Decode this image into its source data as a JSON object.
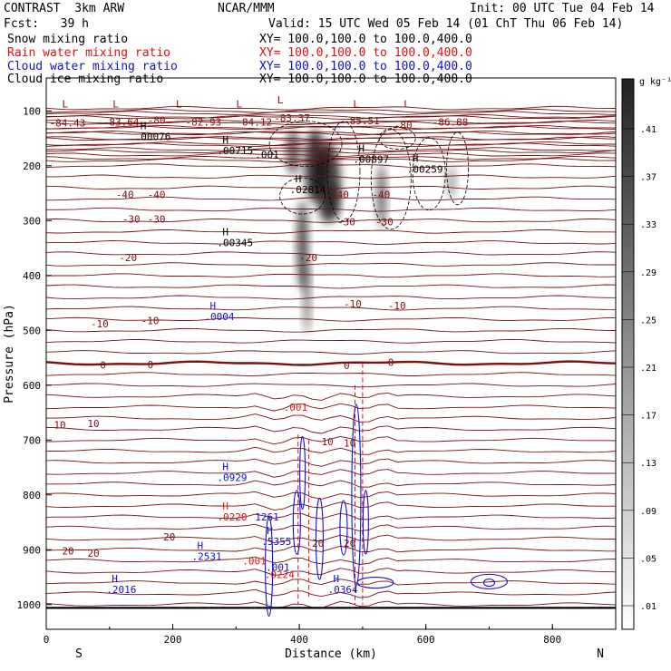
{
  "header": {
    "model": "CONTRAST  3km ARW",
    "org": "NCAR/MMM",
    "init": "Init: 00 UTC Tue 04 Feb 14",
    "fcst": "Fcst:   39 h",
    "valid": "Valid: 15 UTC Wed 05 Feb 14 (01 ChT Thu 06 Feb 14)",
    "xy": "XY= 100.0,100.0 to 100.0,400.0",
    "fields": [
      {
        "label": "Snow mixing ratio",
        "color": "#000000"
      },
      {
        "label": "Rain water mixing ratio",
        "color": "#e01010"
      },
      {
        "label": "Cloud water mixing ratio",
        "color": "#1010d0"
      },
      {
        "label": "Cloud ice mixing ratio",
        "color": "#000000"
      }
    ]
  },
  "colors": {
    "temp": "#7a1010",
    "rain": "#e01010",
    "cloud_water": "#1010d0",
    "snow": "#000000"
  },
  "chart_data": {
    "type": "contour",
    "xlabel": "Distance (km)",
    "ylabel": "Pressure (hPa)",
    "xlim": [
      0,
      900
    ],
    "ylim": [
      1045,
      40
    ],
    "x_ticks": [
      0,
      200,
      400,
      600,
      800
    ],
    "y_ticks": [
      100,
      200,
      300,
      400,
      500,
      600,
      700,
      800,
      900,
      1000
    ],
    "x_end_labels": {
      "left": "S",
      "right": "N"
    },
    "colorbar": {
      "unit": "g kg⁻¹",
      "ticks": [
        ".41",
        ".37",
        ".33",
        ".29",
        ".25",
        ".21",
        ".17",
        ".13",
        ".09",
        ".05",
        ".01"
      ]
    },
    "temperature_labels": [
      {
        "x": 5,
        "p": 122,
        "text": "-84.43"
      },
      {
        "x": 90,
        "p": 120,
        "text": "-83.64"
      },
      {
        "x": 160,
        "p": 117,
        "text": "-80"
      },
      {
        "x": 220,
        "p": 120,
        "text": "-82.93"
      },
      {
        "x": 300,
        "p": 120,
        "text": "-84.12"
      },
      {
        "x": 360,
        "p": 113,
        "text": "-83.37"
      },
      {
        "x": 470,
        "p": 118,
        "text": "-85.51"
      },
      {
        "x": 550,
        "p": 126,
        "text": "-80"
      },
      {
        "x": 610,
        "p": 120,
        "text": "-86.88"
      },
      {
        "x": 110,
        "p": 252,
        "text": "-40"
      },
      {
        "x": 160,
        "p": 252,
        "text": "-40"
      },
      {
        "x": 450,
        "p": 252,
        "text": "-40"
      },
      {
        "x": 515,
        "p": 252,
        "text": "-40"
      },
      {
        "x": 120,
        "p": 297,
        "text": "-30"
      },
      {
        "x": 160,
        "p": 297,
        "text": "-30"
      },
      {
        "x": 460,
        "p": 302,
        "text": "-30"
      },
      {
        "x": 520,
        "p": 302,
        "text": "-30"
      },
      {
        "x": 115,
        "p": 367,
        "text": "-20"
      },
      {
        "x": 400,
        "p": 367,
        "text": "-20"
      },
      {
        "x": 70,
        "p": 488,
        "text": "-10"
      },
      {
        "x": 150,
        "p": 482,
        "text": "-10"
      },
      {
        "x": 470,
        "p": 452,
        "text": "-10"
      },
      {
        "x": 540,
        "p": 455,
        "text": "-10"
      },
      {
        "x": 85,
        "p": 563,
        "text": "0"
      },
      {
        "x": 160,
        "p": 562,
        "text": "0"
      },
      {
        "x": 470,
        "p": 564,
        "text": "0"
      },
      {
        "x": 540,
        "p": 558,
        "text": "0"
      },
      {
        "x": 12,
        "p": 672,
        "text": "10"
      },
      {
        "x": 65,
        "p": 670,
        "text": "10"
      },
      {
        "x": 435,
        "p": 703,
        "text": "10"
      },
      {
        "x": 470,
        "p": 705,
        "text": "10"
      },
      {
        "x": 25,
        "p": 902,
        "text": "20"
      },
      {
        "x": 65,
        "p": 906,
        "text": "20"
      },
      {
        "x": 185,
        "p": 876,
        "text": "20"
      },
      {
        "x": 420,
        "p": 888,
        "text": "20"
      },
      {
        "x": 470,
        "p": 888,
        "text": "20"
      }
    ],
    "extrema": [
      {
        "x": 140,
        "p": 147,
        "mark": "H",
        "value": ".00076",
        "color": "#000000"
      },
      {
        "x": 270,
        "p": 172,
        "mark": "H",
        "value": ".00715",
        "color": "#000000"
      },
      {
        "x": 330,
        "p": 180,
        "mark": "",
        "value": ".001",
        "color": "#000000"
      },
      {
        "x": 385,
        "p": 243,
        "mark": "H",
        "value": ".02814",
        "color": "#000000"
      },
      {
        "x": 485,
        "p": 188,
        "mark": "H",
        "value": ".00897",
        "color": "#000000"
      },
      {
        "x": 570,
        "p": 206,
        "mark": "H",
        "value": ".00259",
        "color": "#000000"
      },
      {
        "x": 270,
        "p": 340,
        "mark": "H",
        "value": ".00345",
        "color": "#000000"
      },
      {
        "x": 250,
        "p": 475,
        "mark": "H",
        "value": ".0004",
        "color": "#1010d0"
      },
      {
        "x": 375,
        "p": 640,
        "mark": "",
        "value": ".001",
        "color": "#e01010"
      },
      {
        "x": 270,
        "p": 768,
        "mark": "H",
        "value": ".0929",
        "color": "#1010d0"
      },
      {
        "x": 270,
        "p": 840,
        "mark": "H",
        "value": ".0220",
        "color": "#e01010"
      },
      {
        "x": 330,
        "p": 840,
        "mark": "",
        "value": "1261",
        "color": "#1010d0"
      },
      {
        "x": 340,
        "p": 885,
        "mark": "H",
        "value": ".5355",
        "color": "#1010d0"
      },
      {
        "x": 230,
        "p": 912,
        "mark": "H",
        "value": ".2531",
        "color": "#1010d0"
      },
      {
        "x": 310,
        "p": 920,
        "mark": "",
        "value": ".001",
        "color": "#e01010"
      },
      {
        "x": 347,
        "p": 932,
        "mark": "",
        "value": ".001",
        "color": "#1010d0"
      },
      {
        "x": 345,
        "p": 945,
        "mark": "",
        "value": ".0224",
        "color": "#e01010"
      },
      {
        "x": 95,
        "p": 972,
        "mark": "H",
        "value": ".2016",
        "color": "#1010d0"
      },
      {
        "x": 445,
        "p": 972,
        "mark": "H",
        "value": ".0364",
        "color": "#1010d0"
      }
    ],
    "low_markers": [
      {
        "x": 25,
        "p": 87
      },
      {
        "x": 105,
        "p": 87
      },
      {
        "x": 205,
        "p": 87
      },
      {
        "x": 300,
        "p": 87
      },
      {
        "x": 365,
        "p": 80
      },
      {
        "x": 485,
        "p": 87
      },
      {
        "x": 565,
        "p": 87
      }
    ]
  }
}
